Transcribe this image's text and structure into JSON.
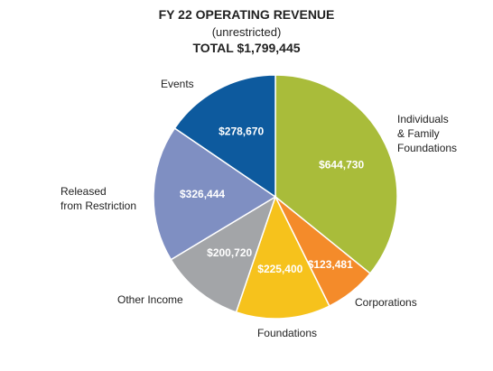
{
  "chart_data": {
    "type": "pie",
    "title": "FY 22 OPERATING REVENUE",
    "subtitle": "(unrestricted)",
    "total_label": "TOTAL $1,799,445",
    "categories": [
      "Individuals\n& Family\nFoundations",
      "Corporations",
      "Foundations",
      "Other Income",
      "Released\nfrom Restriction",
      "Events"
    ],
    "values": [
      644730,
      123481,
      225400,
      200720,
      326444,
      278670
    ],
    "value_labels": [
      "$644,730",
      "$123,481",
      "$225,400",
      "$200,720",
      "$326,444",
      "$278,670"
    ],
    "colors": [
      "#a9bc3a",
      "#f48b2a",
      "#f6c21c",
      "#a3a5a8",
      "#7f8fc2",
      "#0d5a9e"
    ]
  }
}
